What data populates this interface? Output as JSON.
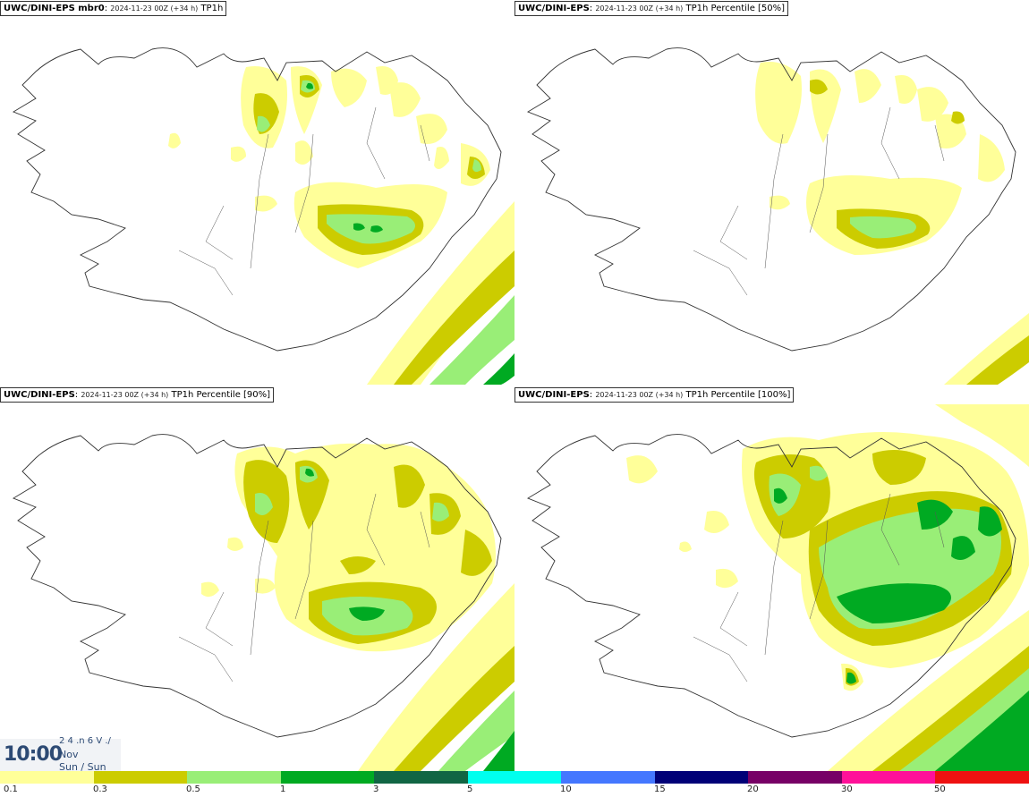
{
  "panels": [
    {
      "model": "UWC/DINI-EPS mbr0",
      "meta": "2024-11-23 00Z (+34 h)",
      "field": "TP1h"
    },
    {
      "model": "UWC/DINI-EPS",
      "meta": "2024-11-23 00Z (+34 h)",
      "field": "TP1h Percentile [50%]"
    },
    {
      "model": "UWC/DINI-EPS",
      "meta": "2024-11-23 00Z (+34 h)",
      "field": "TP1h Percentile [90%]"
    },
    {
      "model": "UWC/DINI-EPS",
      "meta": "2024-11-23 00Z (+34 h)",
      "field": "TP1h Percentile [100%]"
    }
  ],
  "valid_time": {
    "time": "10:00",
    "line1": "2 4 .n 6 V ./",
    "line2": "Nov",
    "line3": "Sun / Sun"
  },
  "legend": {
    "labels": [
      "0.1",
      "0.3",
      "0.5",
      "1",
      "3",
      "5",
      "10",
      "15",
      "20",
      "30",
      "50"
    ],
    "colors": [
      "#ffff99",
      "#cccc00",
      "#99ee77",
      "#00aa22",
      "#116644",
      "#00ffee",
      "#4477ff",
      "#000077",
      "#770066",
      "#ff1199",
      "#ee1111"
    ]
  }
}
